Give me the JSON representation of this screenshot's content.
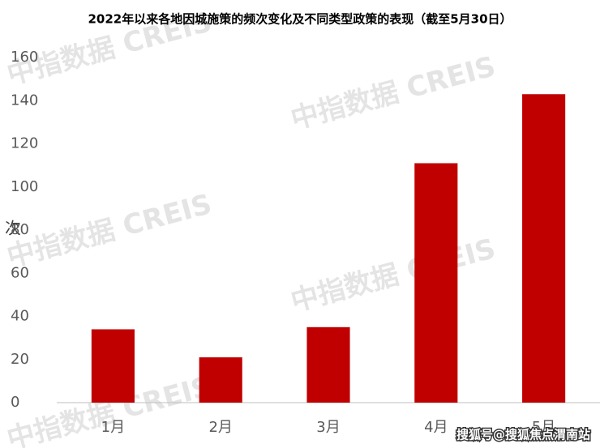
{
  "chart_data": {
    "type": "bar",
    "title": "2022年以来各地因城施策的频次变化及不同类型政策的表现（截至5月30日）",
    "y_label": "次",
    "categories": [
      "1月",
      "2月",
      "3月",
      "4月",
      "5月"
    ],
    "values": [
      34,
      21,
      35,
      111,
      143
    ],
    "color": "#c00000",
    "ylim": [
      0,
      160
    ],
    "yticks": [
      0,
      20,
      40,
      60,
      80,
      100,
      120,
      140,
      160
    ],
    "grid": false,
    "watermark": "中指数据 CREIS",
    "credit": "搜狐号@搜狐焦点渭南站"
  }
}
